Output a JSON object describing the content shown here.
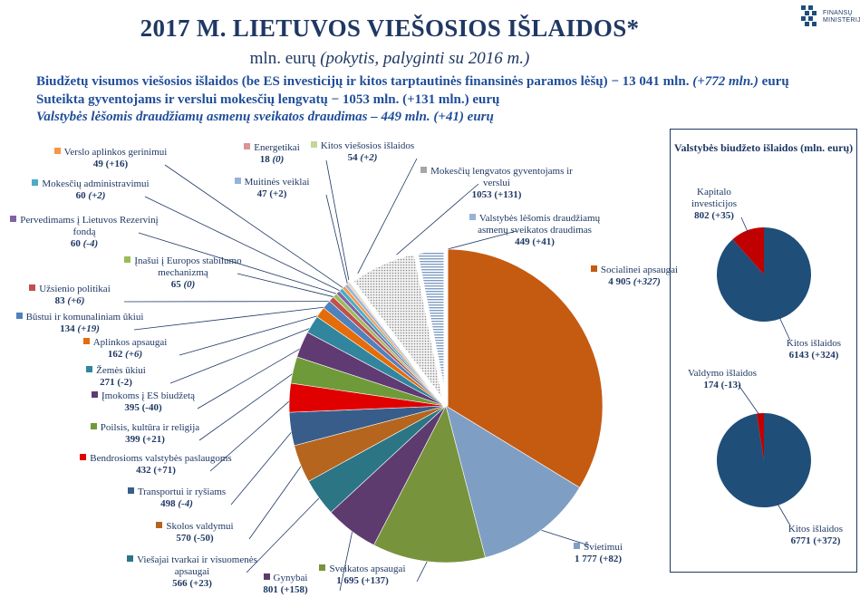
{
  "header": {
    "title": "2017 M. LIETUVOS VIEŠOSIOS IŠLAIDOS*",
    "subtitle_unit": "mln. eurų",
    "subtitle_note": "(pokytis, palyginti su 2016 m.)"
  },
  "summary": {
    "line1_text": "Biudžetų visumos viešosios išlaidos (be ES investicijų ir kitos tarptautinės finansinės paramos lėšų) − 13 041 mln.",
    "line1_change": "(+772 mln.)",
    "line1_unit": "eurų",
    "line2": "Suteikta gyventojams ir verslui mokesčių lengvatų − 1053 mln. (+131 mln.) eurų",
    "line3": "Valstybės lėšomis draudžiamų asmenų sveikatos draudimas – 449 mln. (+41) eurų"
  },
  "logo": {
    "line1": "FINANSŲ",
    "line2": "MINISTERIJA"
  },
  "colors": {
    "title": "#1f3864",
    "summary": "#1f4e9a",
    "side_pie_main": "#1f4e79",
    "side_pie_other": "#c00000"
  },
  "chart_data": [
    {
      "type": "pie",
      "title": "",
      "series": [
        {
          "label": "Socialinei apsaugai",
          "value": 4905,
          "change": "(+327)",
          "change_italic": true,
          "color": "#c55a11"
        },
        {
          "label": "Švietimui",
          "value": 1777,
          "change": "(+82)",
          "change_italic": false,
          "color": "#7f9ec4"
        },
        {
          "label": "Sveikatos apsaugai",
          "value": 1695,
          "change": "(+137)",
          "change_italic": false,
          "color": "#77933c"
        },
        {
          "label": "Gynybai",
          "value": 801,
          "change": "(+158)",
          "change_italic": false,
          "color": "#5e3b6e"
        },
        {
          "label": "Viešajai tvarkai ir visuomenės apsaugai",
          "value": 566,
          "change": "(+23)",
          "change_italic": false,
          "color": "#2c7585"
        },
        {
          "label": "Skolos valdymui",
          "value": 570,
          "change": "(-50)",
          "change_italic": false,
          "color": "#b5651d"
        },
        {
          "label": "Transportui ir ryšiams",
          "value": 498,
          "change": "(-4)",
          "change_italic": true,
          "color": "#385d8a"
        },
        {
          "label": "Bendrosioms valstybės paslaugoms",
          "value": 432,
          "change": "(+71)",
          "change_italic": false,
          "color": "#e00000"
        },
        {
          "label": "Poilsis, kultūra ir religija",
          "value": 399,
          "change": "(+21)",
          "change_italic": false,
          "color": "#6f9a3a"
        },
        {
          "label": "Įmokoms į ES biudžetą",
          "value": 395,
          "change": "(-40)",
          "change_italic": false,
          "color": "#603a72"
        },
        {
          "label": "Žemės ūkiui",
          "value": 271,
          "change": "(-2)",
          "change_italic": false,
          "color": "#31859c"
        },
        {
          "label": "Aplinkos apsaugai",
          "value": 162,
          "change": "(+6)",
          "change_italic": true,
          "color": "#e46c0a"
        },
        {
          "label": "Būstui ir komunaliniam ūkiui",
          "value": 134,
          "change": "(+19)",
          "change_italic": true,
          "color": "#4f81bd"
        },
        {
          "label": "Užsienio politikai",
          "value": 83,
          "change": "(+6)",
          "change_italic": true,
          "color": "#c0504d"
        },
        {
          "label": "Įnašui į Europos stabilumo mechanizmą",
          "value": 65,
          "change": "(0)",
          "change_italic": true,
          "color": "#9bbb59"
        },
        {
          "label": "Pervedimams į Lietuvos Rezervinį fondą",
          "value": 60,
          "change": "(-4)",
          "change_italic": true,
          "color": "#8064a2"
        },
        {
          "label": "Mokesčių administravimui",
          "value": 60,
          "change": "(+2)",
          "change_italic": true,
          "color": "#4bacc6"
        },
        {
          "label": "Verslo aplinkos gerinimui",
          "value": 49,
          "change": "(+16)",
          "change_italic": false,
          "color": "#f79646"
        },
        {
          "label": "Muitinės veiklai",
          "value": 47,
          "change": "(+2)",
          "change_italic": false,
          "color": "#95b3d7"
        },
        {
          "label": "Energetikai",
          "value": 18,
          "change": "(0)",
          "change_italic": true,
          "color": "#d99694"
        },
        {
          "label": "Kitos viešosios išlaidos",
          "value": 54,
          "change": "(+2)",
          "change_italic": true,
          "color": "#c3d69b"
        },
        {
          "label": "Mokesčių lengvatos gyventojams ir verslui",
          "value": 1053,
          "change": "(+131)",
          "change_italic": false,
          "color": "#bfbfbf",
          "pattern": "dots"
        },
        {
          "label": "Valstybės lėšomis draudžiamų asmenų sveikatos draudimas",
          "value": 449,
          "change": "(+41)",
          "change_italic": false,
          "color": "#95b3d7",
          "pattern": "stripes"
        }
      ]
    },
    {
      "type": "pie",
      "title": "Valstybės biudžeto išlaidos (mln. eurų)",
      "series": [
        {
          "label": "Kapitalo investicijos",
          "value": 802,
          "change": "(+35)",
          "color": "#c00000"
        },
        {
          "label": "Kitos išlaidos",
          "value": 6143,
          "change": "(+324)",
          "color": "#1f4e79"
        }
      ]
    },
    {
      "type": "pie",
      "title": "",
      "series": [
        {
          "label": "Valdymo išlaidos",
          "value": 174,
          "change": "(-13)",
          "color": "#c00000"
        },
        {
          "label": "Kitos išlaidos",
          "value": 6771,
          "change": "(+372)",
          "color": "#1f4e79"
        }
      ]
    }
  ]
}
